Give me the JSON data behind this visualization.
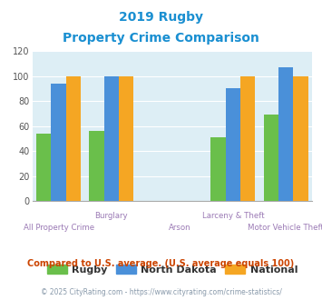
{
  "title_line1": "2019 Rugby",
  "title_line2": "Property Crime Comparison",
  "categories": [
    "All Property Crime",
    "Burglary",
    "Arson",
    "Larceny & Theft",
    "Motor Vehicle Theft"
  ],
  "rugby": [
    54,
    56,
    null,
    51,
    69
  ],
  "north_dakota": [
    94,
    100,
    null,
    90,
    107
  ],
  "national": [
    100,
    100,
    null,
    100,
    100
  ],
  "rugby_color": "#6abf4b",
  "nd_color": "#4a90d9",
  "nat_color": "#f5a623",
  "bg_color": "#ddeef5",
  "title_color": "#1a8fd1",
  "xlabel_color": "#9b7ab5",
  "ylim": [
    0,
    120
  ],
  "yticks": [
    0,
    20,
    40,
    60,
    80,
    100,
    120
  ],
  "legend_labels": [
    "Rugby",
    "North Dakota",
    "National"
  ],
  "note": "Compared to U.S. average. (U.S. average equals 100)",
  "footer": "© 2025 CityRating.com - https://www.cityrating.com/crime-statistics/",
  "note_color": "#cc4400",
  "footer_color": "#8899aa",
  "group_positions": [
    0.5,
    1.5,
    2.8,
    3.8,
    4.8
  ],
  "bar_width": 0.28
}
